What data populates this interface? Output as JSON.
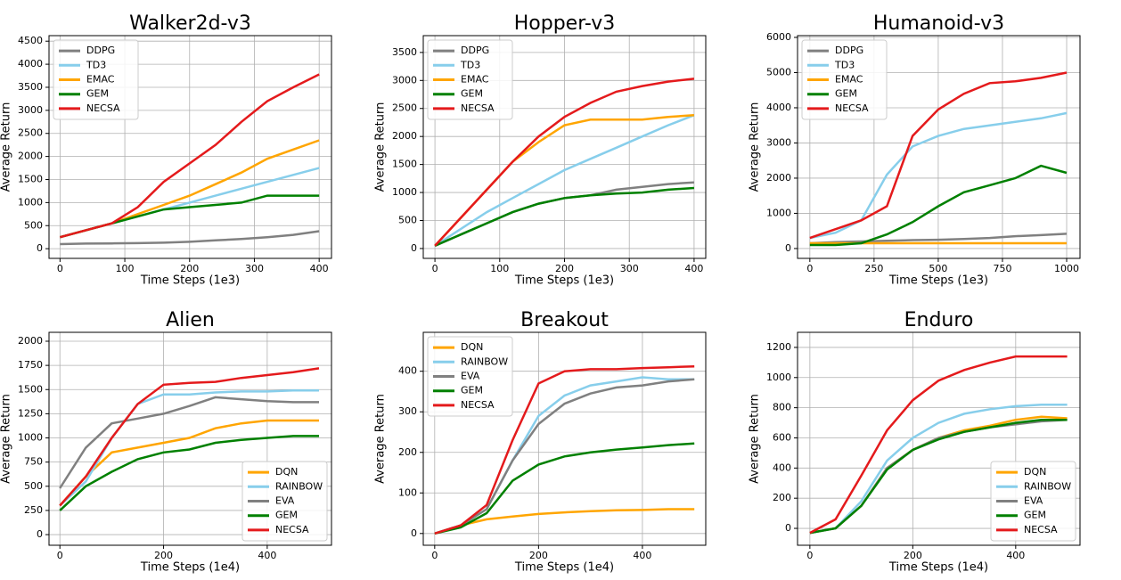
{
  "chart_data": [
    {
      "type": "line",
      "title": "Walker2d-v3",
      "x_label": "Time Steps (1e3)",
      "y_label": "Average Return",
      "x": [
        0,
        40,
        80,
        120,
        160,
        200,
        240,
        280,
        320,
        360,
        400
      ],
      "series": [
        {
          "name": "DDPG",
          "color": "#808080",
          "values": [
            100,
            110,
            115,
            120,
            130,
            150,
            180,
            210,
            250,
            300,
            380
          ]
        },
        {
          "name": "TD3",
          "color": "#87ceeb",
          "values": [
            250,
            400,
            550,
            700,
            850,
            1000,
            1150,
            1300,
            1450,
            1600,
            1750
          ]
        },
        {
          "name": "EMAC",
          "color": "#ffa500",
          "values": [
            250,
            400,
            550,
            750,
            950,
            1150,
            1400,
            1650,
            1950,
            2150,
            2350
          ]
        },
        {
          "name": "GEM",
          "color": "#008000",
          "values": [
            250,
            400,
            550,
            700,
            850,
            900,
            950,
            1000,
            1150,
            1150,
            1150
          ]
        },
        {
          "name": "NECSA",
          "color": "#e41a1c",
          "values": [
            250,
            400,
            550,
            900,
            1450,
            1850,
            2250,
            2750,
            3200,
            3500,
            3780
          ]
        }
      ],
      "xlim": [
        -17,
        419
      ],
      "ylim": [
        -210,
        4620
      ],
      "xticks": [
        0,
        100,
        200,
        300,
        400
      ],
      "yticks": [
        0,
        500,
        1000,
        1500,
        2000,
        2500,
        3000,
        3500,
        4000,
        4500
      ],
      "legend": "upper-left",
      "grid": true
    },
    {
      "type": "line",
      "title": "Hopper-v3",
      "x_label": "Time Steps (1e3)",
      "y_label": "Average Return",
      "x": [
        0,
        40,
        80,
        120,
        160,
        200,
        240,
        280,
        320,
        360,
        400
      ],
      "series": [
        {
          "name": "DDPG",
          "color": "#808080",
          "values": [
            50,
            250,
            450,
            650,
            800,
            900,
            950,
            1050,
            1100,
            1150,
            1180
          ]
        },
        {
          "name": "TD3",
          "color": "#87ceeb",
          "values": [
            50,
            350,
            650,
            900,
            1150,
            1400,
            1600,
            1800,
            2000,
            2200,
            2380
          ]
        },
        {
          "name": "EMAC",
          "color": "#ffa500",
          "values": [
            50,
            550,
            1050,
            1550,
            1900,
            2200,
            2300,
            2300,
            2300,
            2350,
            2380
          ]
        },
        {
          "name": "GEM",
          "color": "#008000",
          "values": [
            50,
            250,
            450,
            650,
            800,
            900,
            950,
            980,
            1000,
            1050,
            1080
          ]
        },
        {
          "name": "NECSA",
          "color": "#e41a1c",
          "values": [
            50,
            550,
            1050,
            1550,
            2000,
            2350,
            2600,
            2800,
            2900,
            2980,
            3030
          ]
        }
      ],
      "xlim": [
        -18,
        418
      ],
      "ylim": [
        -176,
        3800
      ],
      "xticks": [
        0,
        100,
        200,
        300,
        400
      ],
      "yticks": [
        0,
        500,
        1000,
        1500,
        2000,
        2500,
        3000,
        3500
      ],
      "legend": "upper-left",
      "grid": true
    },
    {
      "type": "line",
      "title": "Humanoid-v3",
      "x_label": "Time Steps (1e3)",
      "y_label": "Average Return",
      "x": [
        0,
        100,
        200,
        300,
        400,
        500,
        600,
        700,
        800,
        900,
        1000
      ],
      "series": [
        {
          "name": "DDPG",
          "color": "#808080",
          "values": [
            150,
            180,
            200,
            220,
            240,
            250,
            270,
            300,
            350,
            380,
            420
          ]
        },
        {
          "name": "TD3",
          "color": "#87ceeb",
          "values": [
            300,
            450,
            800,
            2100,
            2900,
            3200,
            3400,
            3500,
            3600,
            3700,
            3850
          ]
        },
        {
          "name": "EMAC",
          "color": "#ffa500",
          "values": [
            150,
            150,
            150,
            150,
            150,
            150,
            150,
            150,
            150,
            150,
            150
          ]
        },
        {
          "name": "GEM",
          "color": "#008000",
          "values": [
            100,
            100,
            150,
            400,
            750,
            1200,
            1600,
            1800,
            2000,
            2350,
            2150
          ]
        },
        {
          "name": "NECSA",
          "color": "#e41a1c",
          "values": [
            300,
            550,
            800,
            1200,
            3200,
            3950,
            4400,
            4700,
            4750,
            4850,
            5000
          ]
        }
      ],
      "xlim": [
        -48,
        1052
      ],
      "ylim": [
        -280,
        6050
      ],
      "xticks": [
        0,
        250,
        500,
        750,
        1000
      ],
      "yticks": [
        0,
        1000,
        2000,
        3000,
        4000,
        5000,
        6000
      ],
      "legend": "upper-left",
      "grid": true
    },
    {
      "type": "line",
      "title": "Alien",
      "x_label": "Time Steps (1e4)",
      "y_label": "Average Return",
      "x": [
        0,
        50,
        100,
        150,
        200,
        250,
        300,
        350,
        400,
        450,
        500
      ],
      "series": [
        {
          "name": "DQN",
          "color": "#ffa500",
          "values": [
            300,
            600,
            850,
            900,
            950,
            1000,
            1100,
            1150,
            1180,
            1180,
            1180
          ]
        },
        {
          "name": "RAINBOW",
          "color": "#87ceeb",
          "values": [
            300,
            550,
            1000,
            1350,
            1450,
            1450,
            1470,
            1480,
            1480,
            1490,
            1490
          ]
        },
        {
          "name": "EVA",
          "color": "#808080",
          "values": [
            480,
            900,
            1150,
            1200,
            1250,
            1330,
            1420,
            1400,
            1380,
            1370,
            1370
          ]
        },
        {
          "name": "GEM",
          "color": "#008000",
          "values": [
            250,
            500,
            650,
            780,
            850,
            880,
            950,
            980,
            1000,
            1020,
            1020
          ]
        },
        {
          "name": "NECSA",
          "color": "#e41a1c",
          "values": [
            300,
            600,
            1000,
            1350,
            1550,
            1570,
            1580,
            1620,
            1650,
            1680,
            1720
          ]
        }
      ],
      "xlim": [
        -21,
        524
      ],
      "ylim": [
        -110,
        2092
      ],
      "xticks": [
        0,
        200,
        400
      ],
      "yticks": [
        0,
        250,
        500,
        750,
        1000,
        1250,
        1500,
        1750,
        2000
      ],
      "legend": "lower-right",
      "grid": true
    },
    {
      "type": "line",
      "title": "Breakout",
      "x_label": "Time Steps (1e4)",
      "y_label": "Average Return",
      "x": [
        0,
        50,
        100,
        150,
        200,
        250,
        300,
        350,
        400,
        450,
        500
      ],
      "series": [
        {
          "name": "DQN",
          "color": "#ffa500",
          "values": [
            0,
            20,
            35,
            42,
            48,
            52,
            55,
            57,
            58,
            60,
            60
          ]
        },
        {
          "name": "RAINBOW",
          "color": "#87ceeb",
          "values": [
            0,
            20,
            60,
            180,
            290,
            340,
            365,
            375,
            385,
            380,
            380
          ]
        },
        {
          "name": "EVA",
          "color": "#808080",
          "values": [
            0,
            20,
            60,
            180,
            270,
            320,
            345,
            360,
            365,
            375,
            380
          ]
        },
        {
          "name": "GEM",
          "color": "#008000",
          "values": [
            0,
            15,
            50,
            130,
            170,
            190,
            200,
            207,
            212,
            218,
            222
          ]
        },
        {
          "name": "NECSA",
          "color": "#e41a1c",
          "values": [
            0,
            20,
            70,
            230,
            370,
            400,
            405,
            405,
            408,
            410,
            412
          ]
        }
      ],
      "xlim": [
        -22,
        522
      ],
      "ylim": [
        -29,
        496
      ],
      "xticks": [
        0,
        200,
        400
      ],
      "yticks": [
        0,
        100,
        200,
        300,
        400
      ],
      "legend": "upper-left",
      "grid": true
    },
    {
      "type": "line",
      "title": "Enduro",
      "x_label": "Time Steps (1e4)",
      "y_label": "Average Return",
      "x": [
        0,
        50,
        100,
        150,
        200,
        250,
        300,
        350,
        400,
        450,
        500
      ],
      "series": [
        {
          "name": "DQN",
          "color": "#ffa500",
          "values": [
            -30,
            0,
            150,
            400,
            520,
            600,
            650,
            680,
            720,
            740,
            730
          ]
        },
        {
          "name": "RAINBOW",
          "color": "#87ceeb",
          "values": [
            -30,
            0,
            180,
            450,
            600,
            700,
            760,
            790,
            810,
            820,
            820
          ]
        },
        {
          "name": "EVA",
          "color": "#808080",
          "values": [
            -30,
            0,
            150,
            400,
            520,
            600,
            640,
            670,
            690,
            710,
            720
          ]
        },
        {
          "name": "GEM",
          "color": "#008000",
          "values": [
            -30,
            0,
            150,
            390,
            520,
            590,
            640,
            670,
            700,
            720,
            720
          ]
        },
        {
          "name": "NECSA",
          "color": "#e41a1c",
          "values": [
            -30,
            60,
            350,
            650,
            850,
            980,
            1050,
            1100,
            1140,
            1140,
            1140
          ]
        }
      ],
      "xlim": [
        -24,
        525
      ],
      "ylim": [
        -112,
        1300
      ],
      "xticks": [
        0,
        200,
        400
      ],
      "yticks": [
        0,
        200,
        400,
        600,
        800,
        1000,
        1200
      ],
      "legend": "lower-right",
      "grid": true
    }
  ]
}
